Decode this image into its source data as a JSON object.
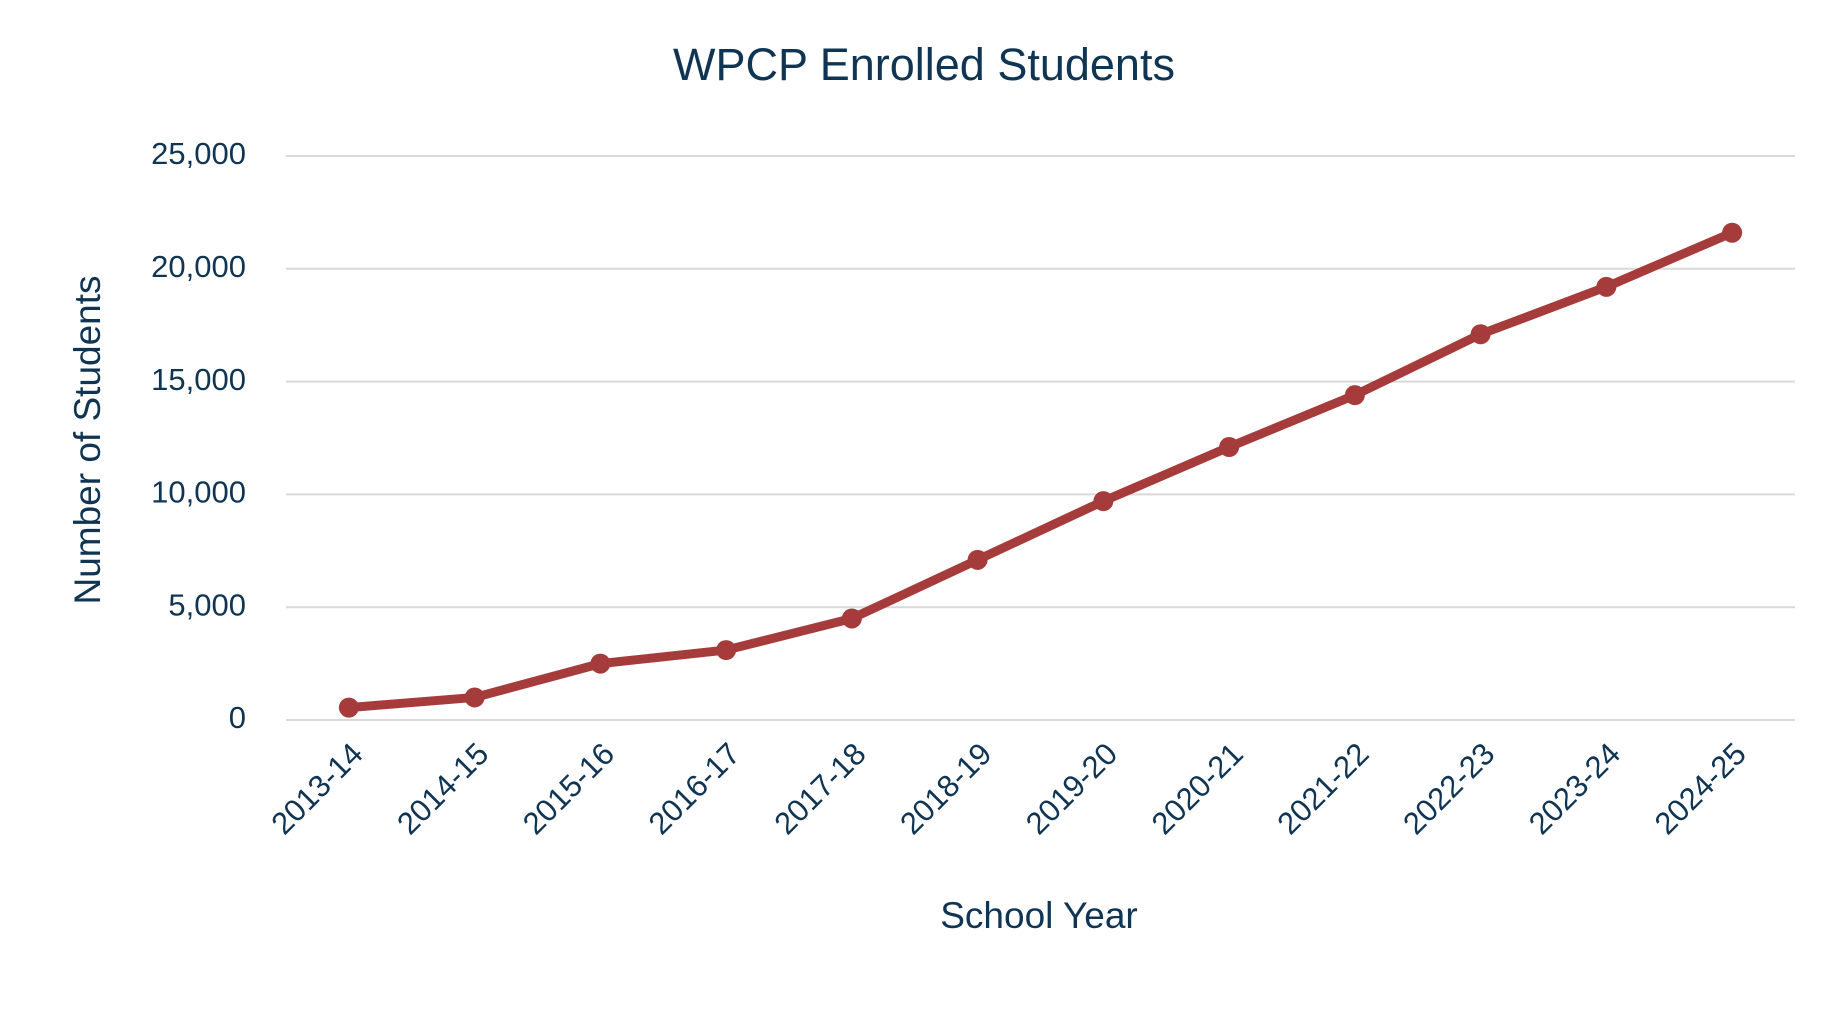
{
  "chart_data": {
    "type": "line",
    "title": "WPCP Enrolled Students",
    "x_label": "School Year",
    "y_label": "Number of Students",
    "categories": [
      "2013-14",
      "2014-15",
      "2015-16",
      "2016-17",
      "2017-18",
      "2018-19",
      "2019-20",
      "2020-21",
      "2021-22",
      "2022-23",
      "2023-24",
      "2024-25"
    ],
    "values": [
      550,
      1000,
      2500,
      3100,
      4500,
      7100,
      9700,
      12100,
      14400,
      17100,
      19200,
      21600
    ],
    "color": "#a63b3b",
    "ylim": [
      0,
      25000
    ],
    "yticks": [
      0,
      {
        "value": 5000,
        "label": "5,000"
      },
      {
        "value": 10000,
        "label": "10,000"
      },
      {
        "value": 15000,
        "label": "15,000"
      },
      {
        "value": 20000,
        "label": "20,000"
      },
      {
        "value": 25000,
        "label": "25,000"
      }
    ],
    "grid": true
  }
}
